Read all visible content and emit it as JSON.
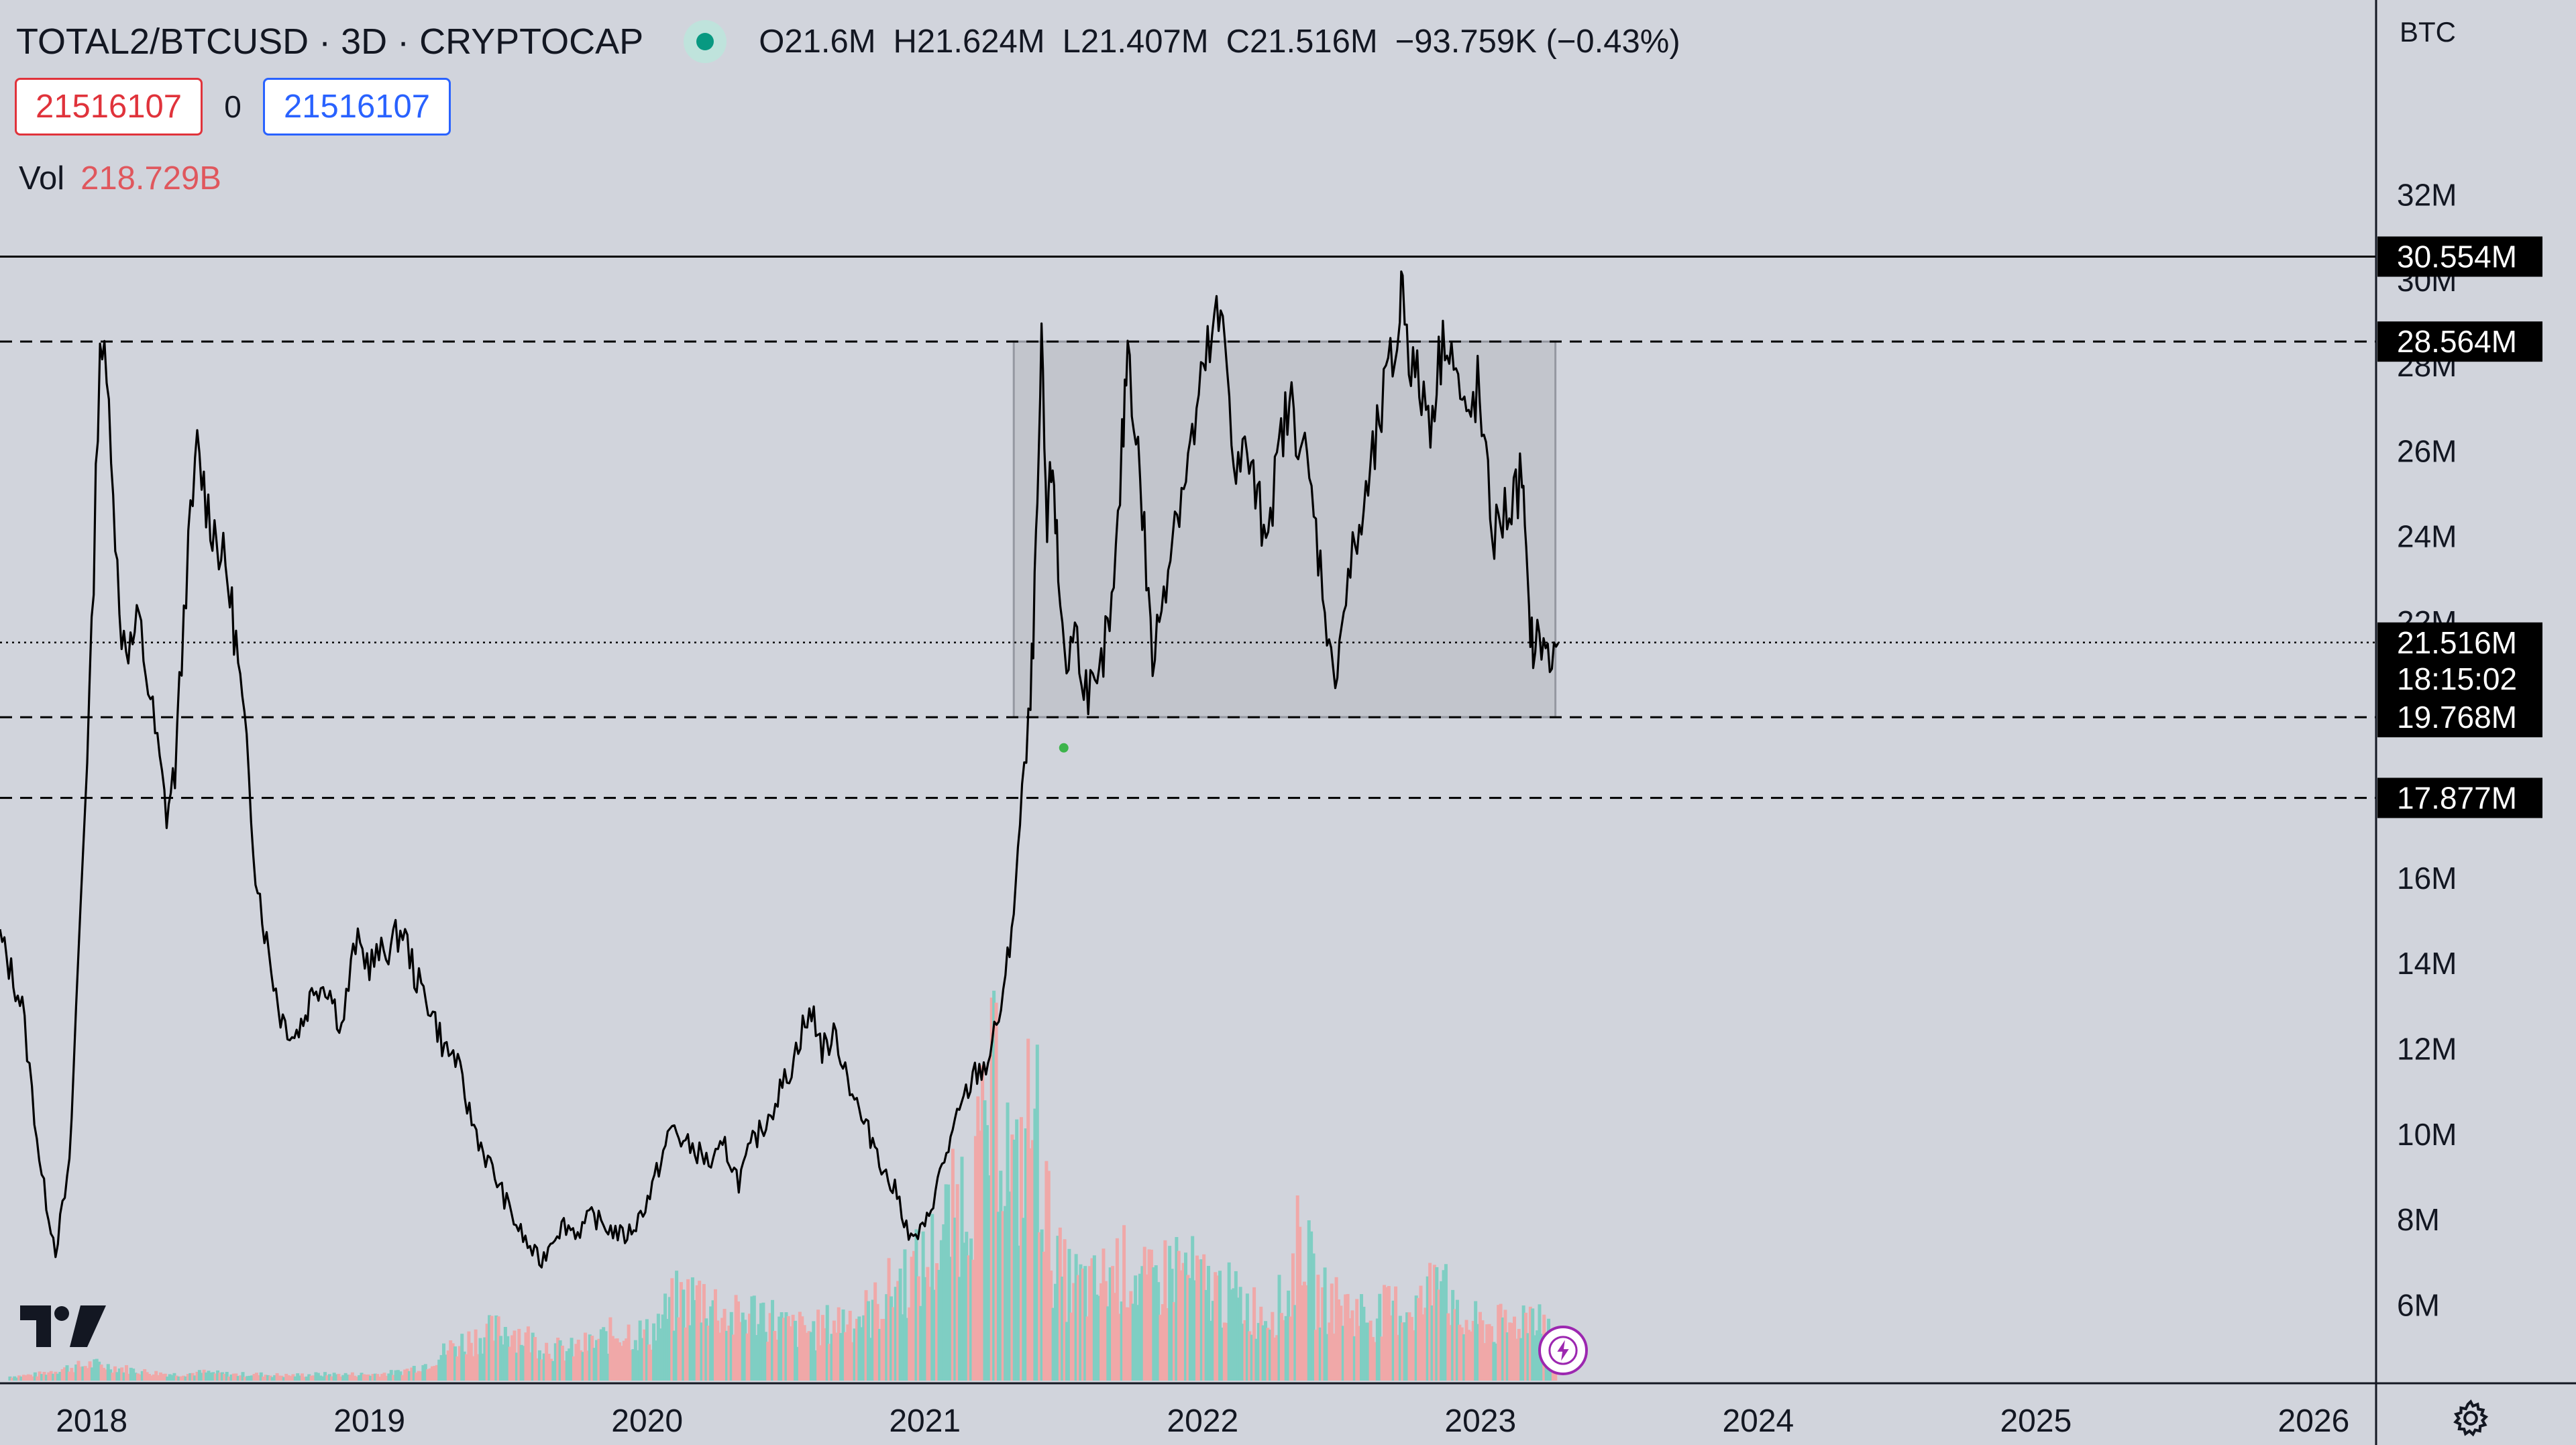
{
  "header": {
    "symbol": "TOTAL2/BTCUSD · 3D · CRYPTOCAP",
    "ohlc": {
      "open_label": "O",
      "open": "21.6M",
      "high_label": "H",
      "high": "21.624M",
      "low_label": "L",
      "low": "21.407M",
      "close_label": "C",
      "close": "21.516M",
      "change": "−93.759K (−0.43%)"
    }
  },
  "order_buttons": {
    "sell": "21516107",
    "spread": "0",
    "buy": "21516107"
  },
  "volume_legend": {
    "label": "Vol",
    "value": "218.729B"
  },
  "price_axis": {
    "unit": "BTC",
    "ticks": [
      "32M",
      "30M",
      "28M",
      "26M",
      "24M",
      "22M",
      "16M",
      "14M",
      "12M",
      "10M",
      "8M",
      "6M"
    ]
  },
  "time_axis": {
    "ticks": [
      "2018",
      "2019",
      "2020",
      "2021",
      "2022",
      "2023",
      "2024",
      "2025",
      "2026"
    ]
  },
  "icons": {
    "logo": "tradingview-logo",
    "bolt": "lightning-icon",
    "settings": "gear-icon"
  },
  "colors": {
    "background": "#d1d4dc",
    "line": "#000000",
    "vol_up": "#7fcec3",
    "vol_down": "#f0a8a8",
    "sell": "#e0333b",
    "buy": "#2962ff",
    "range_box": "#b6b8bf"
  },
  "chart_data": {
    "type": "line",
    "title": "TOTAL2/BTCUSD · 3D · CRYPTOCAP",
    "ylabel": "BTC",
    "ylim": [
      4.2,
      33.5
    ],
    "xlim": [
      2017.67,
      2026.22
    ],
    "grid": false,
    "series": [
      {
        "kind": "close",
        "points": [
          [
            2017.67,
            14.6
          ],
          [
            2017.75,
            13.0
          ],
          [
            2017.82,
            9.0
          ],
          [
            2017.87,
            7.3
          ],
          [
            2017.92,
            9.2
          ],
          [
            2018.0,
            21.5
          ],
          [
            2018.03,
            28.8
          ],
          [
            2018.07,
            26.5
          ],
          [
            2018.1,
            22.0
          ],
          [
            2018.14,
            21.4
          ],
          [
            2018.17,
            22.0
          ],
          [
            2018.22,
            19.8
          ],
          [
            2018.27,
            17.5
          ],
          [
            2018.3,
            18.5
          ],
          [
            2018.34,
            23.0
          ],
          [
            2018.38,
            26.0
          ],
          [
            2018.42,
            24.6
          ],
          [
            2018.45,
            24.0
          ],
          [
            2018.49,
            23.0
          ],
          [
            2018.52,
            21.5
          ],
          [
            2018.55,
            19.5
          ],
          [
            2018.59,
            16.3
          ],
          [
            2018.63,
            14.5
          ],
          [
            2018.68,
            12.8
          ],
          [
            2018.73,
            12.3
          ],
          [
            2018.77,
            12.8
          ],
          [
            2018.8,
            13.5
          ],
          [
            2018.85,
            13.5
          ],
          [
            2018.9,
            12.5
          ],
          [
            2018.95,
            14.5
          ],
          [
            2019.0,
            14.0
          ],
          [
            2019.06,
            14.3
          ],
          [
            2019.12,
            14.8
          ],
          [
            2019.17,
            13.6
          ],
          [
            2019.22,
            13.0
          ],
          [
            2019.27,
            12.0
          ],
          [
            2019.31,
            11.8
          ],
          [
            2019.36,
            10.5
          ],
          [
            2019.41,
            9.6
          ],
          [
            2019.46,
            8.9
          ],
          [
            2019.52,
            8.0
          ],
          [
            2019.57,
            7.4
          ],
          [
            2019.62,
            7.0
          ],
          [
            2019.66,
            7.6
          ],
          [
            2019.7,
            7.9
          ],
          [
            2019.75,
            7.7
          ],
          [
            2019.8,
            8.1
          ],
          [
            2019.86,
            7.8
          ],
          [
            2019.92,
            7.6
          ],
          [
            2019.96,
            7.9
          ],
          [
            2020.01,
            8.6
          ],
          [
            2020.05,
            9.4
          ],
          [
            2020.09,
            10.2
          ],
          [
            2020.13,
            9.8
          ],
          [
            2020.18,
            9.6
          ],
          [
            2020.23,
            9.3
          ],
          [
            2020.28,
            9.7
          ],
          [
            2020.33,
            8.9
          ],
          [
            2020.38,
            9.8
          ],
          [
            2020.42,
            10.2
          ],
          [
            2020.47,
            10.9
          ],
          [
            2020.52,
            11.6
          ],
          [
            2020.56,
            12.5
          ],
          [
            2020.6,
            12.8
          ],
          [
            2020.63,
            12.0
          ],
          [
            2020.68,
            12.3
          ],
          [
            2020.73,
            11.2
          ],
          [
            2020.78,
            10.2
          ],
          [
            2020.82,
            9.8
          ],
          [
            2020.86,
            9.0
          ],
          [
            2020.9,
            8.6
          ],
          [
            2020.95,
            7.5
          ],
          [
            2021.0,
            7.8
          ],
          [
            2021.03,
            8.5
          ],
          [
            2021.07,
            9.4
          ],
          [
            2021.1,
            10.0
          ],
          [
            2021.14,
            10.8
          ],
          [
            2021.18,
            11.4
          ],
          [
            2021.22,
            11.6
          ],
          [
            2021.25,
            12.3
          ],
          [
            2021.29,
            13.5
          ],
          [
            2021.32,
            15.4
          ],
          [
            2021.35,
            17.8
          ],
          [
            2021.38,
            20.0
          ],
          [
            2021.4,
            23.5
          ],
          [
            2021.42,
            28.2
          ],
          [
            2021.44,
            24.0
          ],
          [
            2021.46,
            26.0
          ],
          [
            2021.48,
            23.0
          ],
          [
            2021.51,
            21.0
          ],
          [
            2021.54,
            21.8
          ],
          [
            2021.58,
            20.5
          ],
          [
            2021.62,
            20.2
          ],
          [
            2021.65,
            21.5
          ],
          [
            2021.68,
            22.5
          ],
          [
            2021.71,
            26.0
          ],
          [
            2021.73,
            28.6
          ],
          [
            2021.76,
            26.5
          ],
          [
            2021.79,
            24.0
          ],
          [
            2021.82,
            21.0
          ],
          [
            2021.86,
            22.8
          ],
          [
            2021.9,
            24.5
          ],
          [
            2021.94,
            25.5
          ],
          [
            2021.97,
            26.5
          ],
          [
            2022.01,
            28.0
          ],
          [
            2022.05,
            29.0
          ],
          [
            2022.08,
            28.6
          ],
          [
            2022.12,
            25.5
          ],
          [
            2022.16,
            26.0
          ],
          [
            2022.19,
            25.0
          ],
          [
            2022.22,
            24.2
          ],
          [
            2022.26,
            25.2
          ],
          [
            2022.29,
            26.6
          ],
          [
            2022.32,
            27.0
          ],
          [
            2022.36,
            26.2
          ],
          [
            2022.4,
            24.5
          ],
          [
            2022.44,
            22.5
          ],
          [
            2022.47,
            20.5
          ],
          [
            2022.5,
            22.0
          ],
          [
            2022.54,
            23.5
          ],
          [
            2022.58,
            24.5
          ],
          [
            2022.62,
            26.0
          ],
          [
            2022.66,
            27.5
          ],
          [
            2022.7,
            28.5
          ],
          [
            2022.72,
            30.1
          ],
          [
            2022.75,
            28.0
          ],
          [
            2022.78,
            27.5
          ],
          [
            2022.82,
            26.8
          ],
          [
            2022.85,
            28.0
          ],
          [
            2022.88,
            29.0
          ],
          [
            2022.92,
            27.5
          ],
          [
            2022.95,
            26.5
          ],
          [
            2022.99,
            27.5
          ],
          [
            2023.02,
            25.5
          ],
          [
            2023.05,
            24.0
          ],
          [
            2023.08,
            24.5
          ],
          [
            2023.12,
            24.8
          ],
          [
            2023.15,
            25.5
          ],
          [
            2023.17,
            22.5
          ],
          [
            2023.19,
            21.4
          ],
          [
            2023.22,
            21.6
          ],
          [
            2023.25,
            21.0
          ],
          [
            2023.28,
            21.5
          ]
        ]
      }
    ],
    "volume": {
      "name": "Vol",
      "ylim_billions": [
        0,
        1600
      ],
      "points": [
        [
          2017.7,
          20
        ],
        [
          2017.8,
          30
        ],
        [
          2017.9,
          60
        ],
        [
          2018.0,
          80
        ],
        [
          2018.1,
          60
        ],
        [
          2018.2,
          40
        ],
        [
          2018.3,
          30
        ],
        [
          2018.4,
          40
        ],
        [
          2018.5,
          30
        ],
        [
          2018.6,
          30
        ],
        [
          2018.7,
          25
        ],
        [
          2018.8,
          30
        ],
        [
          2018.9,
          30
        ],
        [
          2019.0,
          30
        ],
        [
          2019.1,
          40
        ],
        [
          2019.2,
          80
        ],
        [
          2019.3,
          170
        ],
        [
          2019.4,
          220
        ],
        [
          2019.5,
          250
        ],
        [
          2019.6,
          180
        ],
        [
          2019.7,
          140
        ],
        [
          2019.8,
          180
        ],
        [
          2019.9,
          240
        ],
        [
          2020.0,
          220
        ],
        [
          2020.1,
          380
        ],
        [
          2020.2,
          410
        ],
        [
          2020.3,
          290
        ],
        [
          2020.4,
          340
        ],
        [
          2020.5,
          250
        ],
        [
          2020.6,
          240
        ],
        [
          2020.7,
          300
        ],
        [
          2020.8,
          330
        ],
        [
          2020.9,
          480
        ],
        [
          2021.0,
          560
        ],
        [
          2021.1,
          810
        ],
        [
          2021.2,
          1080
        ],
        [
          2021.25,
          1420
        ],
        [
          2021.32,
          900
        ],
        [
          2021.37,
          1280
        ],
        [
          2021.4,
          1210
        ],
        [
          2021.45,
          620
        ],
        [
          2021.5,
          480
        ],
        [
          2021.6,
          440
        ],
        [
          2021.7,
          550
        ],
        [
          2021.8,
          450
        ],
        [
          2021.9,
          560
        ],
        [
          2022.0,
          460
        ],
        [
          2022.1,
          400
        ],
        [
          2022.2,
          330
        ],
        [
          2022.3,
          380
        ],
        [
          2022.35,
          750
        ],
        [
          2022.4,
          410
        ],
        [
          2022.5,
          360
        ],
        [
          2022.6,
          310
        ],
        [
          2022.7,
          350
        ],
        [
          2022.8,
          370
        ],
        [
          2022.85,
          710
        ],
        [
          2022.9,
          280
        ],
        [
          2023.0,
          270
        ],
        [
          2023.1,
          260
        ],
        [
          2023.2,
          360
        ],
        [
          2023.25,
          200
        ]
      ]
    },
    "horizontal_lines": [
      {
        "price": "30.554M",
        "value": 30.554,
        "style": "solid"
      },
      {
        "price": "28.564M",
        "value": 28.564,
        "style": "dashed"
      },
      {
        "price": "19.768M",
        "value": 19.768,
        "style": "dashed"
      },
      {
        "price": "17.877M",
        "value": 17.877,
        "style": "dashed"
      }
    ],
    "current_price": {
      "price": "21.516M",
      "value": 21.516,
      "countdown": "18:15:02"
    },
    "range_box": {
      "x0": 2021.32,
      "x1": 2023.27,
      "y0": 19.768,
      "y1": 28.564
    },
    "markers": [
      {
        "x": 2021.5,
        "y": 19.05,
        "color": "#3cb44b"
      }
    ]
  }
}
